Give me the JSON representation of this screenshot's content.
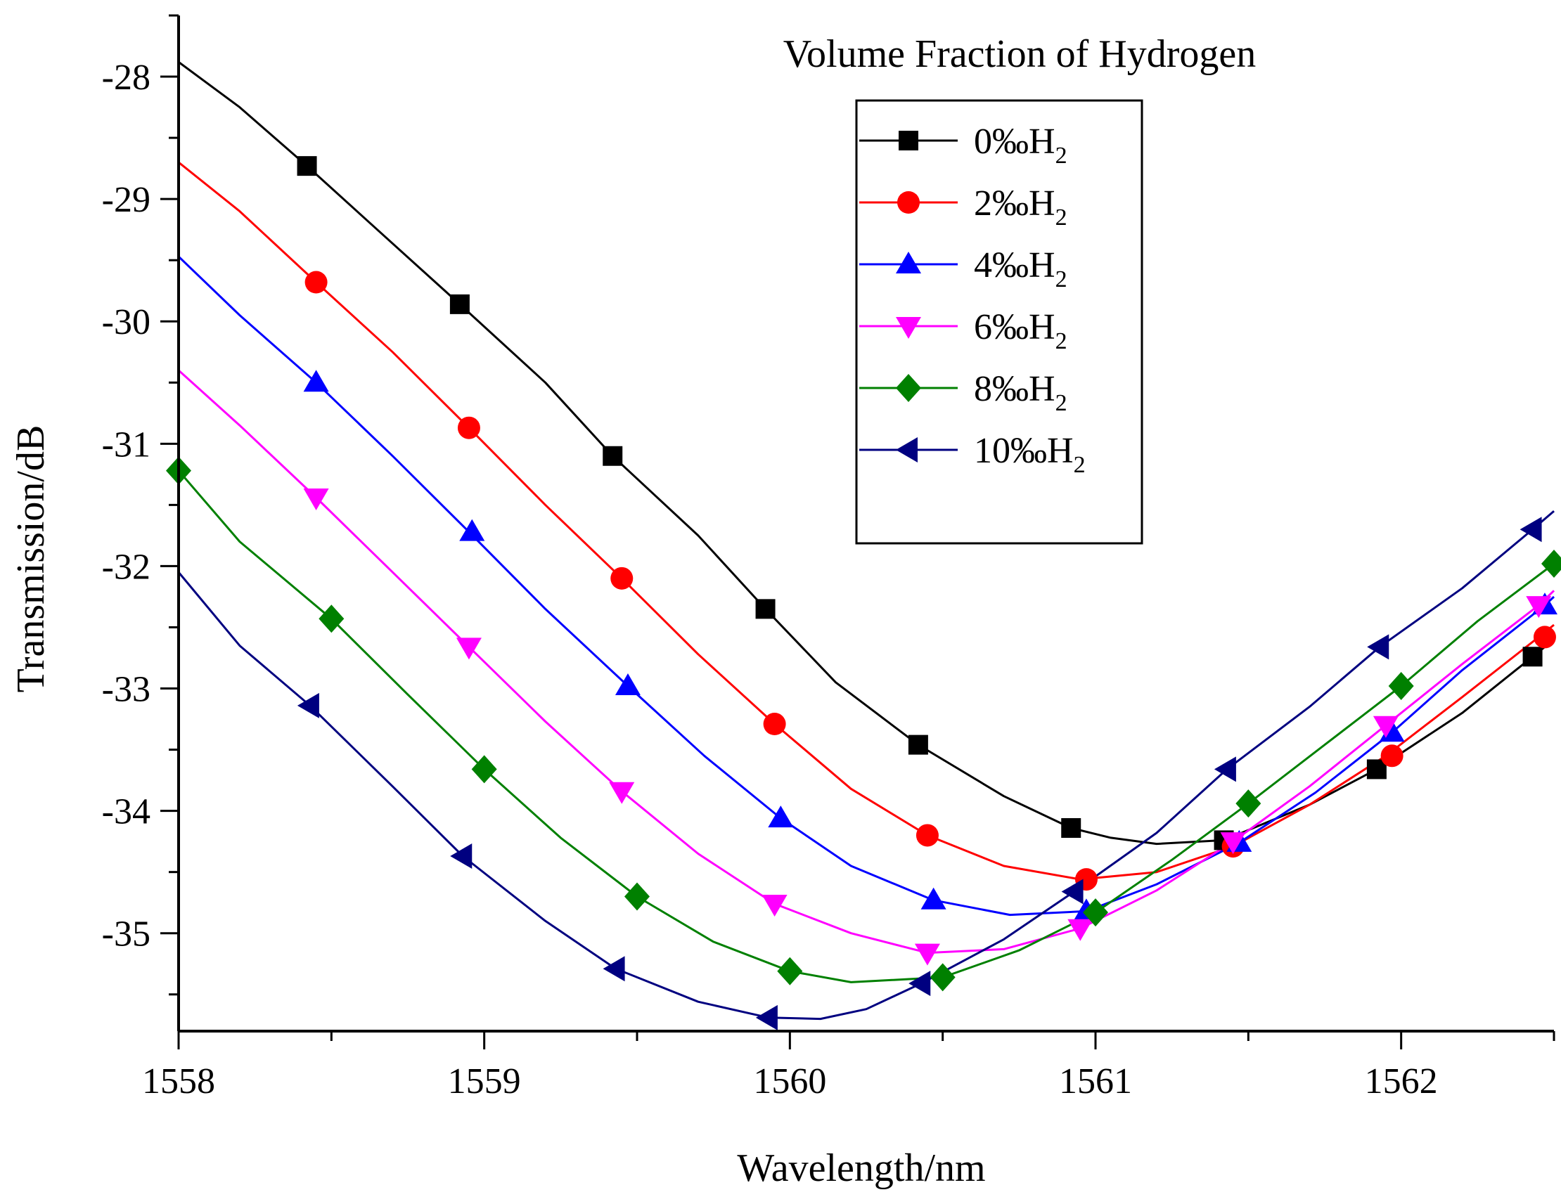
{
  "chart_data": {
    "type": "line",
    "title": "",
    "xlabel": "Wavelength/nm",
    "ylabel": "Transmission/dB",
    "xlim": [
      1558,
      1562.5
    ],
    "ylim": [
      -35.8,
      -27.5
    ],
    "xticks": [
      1558,
      1559,
      1560,
      1561,
      1562
    ],
    "xtick_labels": [
      "1558",
      "1559",
      "1560",
      "1561",
      "1562"
    ],
    "yticks": [
      -35,
      -34,
      -33,
      -32,
      -31,
      -30,
      -29,
      -28
    ],
    "ytick_labels": [
      "-35",
      "-34",
      "-33",
      "-32",
      "-31",
      "-30",
      "-29",
      "-28"
    ],
    "grid": false,
    "legend_title": "Volume Fraction of Hydrogen",
    "legend_position": "top-right",
    "series": [
      {
        "name": "0‰H2",
        "label_main": "0‰H",
        "label_sub": "2",
        "color": "#000000",
        "marker": "square",
        "line": [
          [
            1558.0,
            -27.88
          ],
          [
            1558.2,
            -28.25
          ],
          [
            1558.42,
            -28.73
          ],
          [
            1558.65,
            -29.25
          ],
          [
            1558.92,
            -29.86
          ],
          [
            1559.2,
            -30.5
          ],
          [
            1559.42,
            -31.1
          ],
          [
            1559.7,
            -31.75
          ],
          [
            1559.92,
            -32.35
          ],
          [
            1560.15,
            -32.95
          ],
          [
            1560.42,
            -33.46
          ],
          [
            1560.7,
            -33.88
          ],
          [
            1560.92,
            -34.14
          ],
          [
            1561.05,
            -34.22
          ],
          [
            1561.2,
            -34.27
          ],
          [
            1561.42,
            -34.24
          ],
          [
            1561.7,
            -33.95
          ],
          [
            1561.92,
            -33.66
          ],
          [
            1562.2,
            -33.2
          ],
          [
            1562.43,
            -32.74
          ],
          [
            1562.5,
            -32.6
          ]
        ],
        "markers": [
          [
            1558.42,
            -28.73
          ],
          [
            1558.92,
            -29.86
          ],
          [
            1559.42,
            -31.1
          ],
          [
            1559.92,
            -32.35
          ],
          [
            1560.42,
            -33.46
          ],
          [
            1560.92,
            -34.14
          ],
          [
            1561.42,
            -34.24
          ],
          [
            1561.92,
            -33.66
          ],
          [
            1562.43,
            -32.74
          ]
        ]
      },
      {
        "name": "2‰H2",
        "label_main": "2‰H",
        "label_sub": "2",
        "color": "#ff0000",
        "marker": "circle",
        "line": [
          [
            1558.0,
            -28.7
          ],
          [
            1558.2,
            -29.1
          ],
          [
            1558.45,
            -29.68
          ],
          [
            1558.7,
            -30.25
          ],
          [
            1558.95,
            -30.87
          ],
          [
            1559.2,
            -31.5
          ],
          [
            1559.45,
            -32.1
          ],
          [
            1559.7,
            -32.72
          ],
          [
            1559.95,
            -33.29
          ],
          [
            1560.2,
            -33.82
          ],
          [
            1560.45,
            -34.2
          ],
          [
            1560.7,
            -34.45
          ],
          [
            1560.95,
            -34.56
          ],
          [
            1561.2,
            -34.5
          ],
          [
            1561.45,
            -34.29
          ],
          [
            1561.7,
            -33.95
          ],
          [
            1561.95,
            -33.55
          ],
          [
            1562.2,
            -33.07
          ],
          [
            1562.45,
            -32.58
          ],
          [
            1562.5,
            -32.48
          ]
        ],
        "markers": [
          [
            1558.45,
            -29.68
          ],
          [
            1558.95,
            -30.87
          ],
          [
            1559.45,
            -32.1
          ],
          [
            1559.95,
            -33.29
          ],
          [
            1560.45,
            -34.2
          ],
          [
            1560.97,
            -34.56
          ],
          [
            1561.45,
            -34.29
          ],
          [
            1561.97,
            -33.55
          ],
          [
            1562.47,
            -32.58
          ]
        ]
      },
      {
        "name": "4‰H2",
        "label_main": "4‰H",
        "label_sub": "2",
        "color": "#0000ff",
        "marker": "triangle-up",
        "line": [
          [
            1558.0,
            -29.47
          ],
          [
            1558.2,
            -29.95
          ],
          [
            1558.45,
            -30.5
          ],
          [
            1558.7,
            -31.1
          ],
          [
            1558.95,
            -31.72
          ],
          [
            1559.2,
            -32.35
          ],
          [
            1559.47,
            -32.98
          ],
          [
            1559.72,
            -33.55
          ],
          [
            1559.97,
            -34.06
          ],
          [
            1560.2,
            -34.45
          ],
          [
            1560.47,
            -34.73
          ],
          [
            1560.72,
            -34.85
          ],
          [
            1560.97,
            -34.82
          ],
          [
            1561.2,
            -34.6
          ],
          [
            1561.47,
            -34.26
          ],
          [
            1561.72,
            -33.85
          ],
          [
            1561.97,
            -33.36
          ],
          [
            1562.2,
            -32.85
          ],
          [
            1562.47,
            -32.32
          ],
          [
            1562.5,
            -32.25
          ]
        ],
        "markers": [
          [
            1558.45,
            -30.5
          ],
          [
            1558.96,
            -31.72
          ],
          [
            1559.47,
            -32.98
          ],
          [
            1559.97,
            -34.06
          ],
          [
            1560.47,
            -34.73
          ],
          [
            1560.97,
            -34.82
          ],
          [
            1561.47,
            -34.26
          ],
          [
            1561.97,
            -33.36
          ],
          [
            1562.47,
            -32.32
          ]
        ]
      },
      {
        "name": "6‰H2",
        "label_main": "6‰H",
        "label_sub": "2",
        "color": "#ff00ff",
        "marker": "triangle-down",
        "line": [
          [
            1558.0,
            -30.4
          ],
          [
            1558.2,
            -30.85
          ],
          [
            1558.45,
            -31.44
          ],
          [
            1558.7,
            -32.05
          ],
          [
            1558.95,
            -32.66
          ],
          [
            1559.2,
            -33.27
          ],
          [
            1559.45,
            -33.84
          ],
          [
            1559.7,
            -34.35
          ],
          [
            1559.95,
            -34.76
          ],
          [
            1560.2,
            -35.0
          ],
          [
            1560.45,
            -35.16
          ],
          [
            1560.7,
            -35.13
          ],
          [
            1560.95,
            -34.96
          ],
          [
            1561.2,
            -34.65
          ],
          [
            1561.45,
            -34.25
          ],
          [
            1561.7,
            -33.8
          ],
          [
            1561.95,
            -33.3
          ],
          [
            1562.2,
            -32.8
          ],
          [
            1562.45,
            -32.32
          ],
          [
            1562.5,
            -32.2
          ]
        ],
        "markers": [
          [
            1558.45,
            -31.44
          ],
          [
            1558.95,
            -32.66
          ],
          [
            1559.45,
            -33.84
          ],
          [
            1559.95,
            -34.76
          ],
          [
            1560.45,
            -35.16
          ],
          [
            1560.95,
            -34.96
          ],
          [
            1561.45,
            -34.25
          ],
          [
            1561.95,
            -33.3
          ],
          [
            1562.45,
            -32.32
          ]
        ]
      },
      {
        "name": "8‰H2",
        "label_main": "8‰H",
        "label_sub": "2",
        "color": "#008000",
        "marker": "diamond",
        "line": [
          [
            1558.0,
            -31.22
          ],
          [
            1558.2,
            -31.8
          ],
          [
            1558.5,
            -32.43
          ],
          [
            1558.75,
            -33.05
          ],
          [
            1559.0,
            -33.66
          ],
          [
            1559.25,
            -34.22
          ],
          [
            1559.5,
            -34.7
          ],
          [
            1559.75,
            -35.07
          ],
          [
            1560.0,
            -35.31
          ],
          [
            1560.2,
            -35.4
          ],
          [
            1560.5,
            -35.36
          ],
          [
            1560.75,
            -35.14
          ],
          [
            1561.0,
            -34.83
          ],
          [
            1561.25,
            -34.4
          ],
          [
            1561.5,
            -33.94
          ],
          [
            1561.75,
            -33.46
          ],
          [
            1562.0,
            -32.98
          ],
          [
            1562.25,
            -32.45
          ],
          [
            1562.5,
            -31.98
          ]
        ],
        "markers": [
          [
            1558.0,
            -31.22
          ],
          [
            1558.5,
            -32.43
          ],
          [
            1559.0,
            -33.66
          ],
          [
            1559.5,
            -34.7
          ],
          [
            1560.0,
            -35.31
          ],
          [
            1560.5,
            -35.36
          ],
          [
            1561.0,
            -34.83
          ],
          [
            1561.5,
            -33.94
          ],
          [
            1562.0,
            -32.98
          ],
          [
            1562.5,
            -31.98
          ]
        ]
      },
      {
        "name": "10‰H2",
        "label_main": "10‰H",
        "label_sub": "2",
        "color": "#000080",
        "marker": "triangle-left",
        "line": [
          [
            1558.0,
            -32.05
          ],
          [
            1558.2,
            -32.65
          ],
          [
            1558.43,
            -33.14
          ],
          [
            1558.7,
            -33.8
          ],
          [
            1558.93,
            -34.37
          ],
          [
            1559.2,
            -34.9
          ],
          [
            1559.43,
            -35.29
          ],
          [
            1559.7,
            -35.56
          ],
          [
            1559.93,
            -35.69
          ],
          [
            1560.1,
            -35.7
          ],
          [
            1560.25,
            -35.62
          ],
          [
            1560.43,
            -35.41
          ],
          [
            1560.7,
            -35.05
          ],
          [
            1560.93,
            -34.66
          ],
          [
            1561.2,
            -34.18
          ],
          [
            1561.43,
            -33.66
          ],
          [
            1561.7,
            -33.15
          ],
          [
            1561.93,
            -32.66
          ],
          [
            1562.2,
            -32.18
          ],
          [
            1562.43,
            -31.7
          ],
          [
            1562.5,
            -31.55
          ]
        ],
        "markers": [
          [
            1558.43,
            -33.14
          ],
          [
            1558.93,
            -34.37
          ],
          [
            1559.43,
            -35.29
          ],
          [
            1559.93,
            -35.69
          ],
          [
            1560.43,
            -35.41
          ],
          [
            1560.93,
            -34.66
          ],
          [
            1561.43,
            -33.66
          ],
          [
            1561.93,
            -32.66
          ],
          [
            1562.43,
            -31.7
          ]
        ]
      }
    ]
  }
}
